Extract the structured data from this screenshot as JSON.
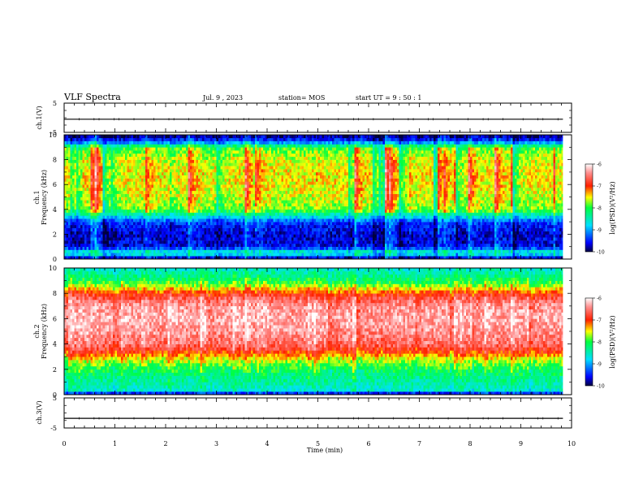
{
  "header": {
    "title": "VLF Spectra",
    "date": "Jul. 9 , 2023",
    "station": "station= MOS",
    "start_ut": "start UT = 9 : 50 : 1"
  },
  "chart_data": [
    {
      "type": "line",
      "panel": "ch1-waveform",
      "ylabel": "ch.1(V)",
      "ylim": [
        -5,
        5
      ],
      "yticks": [
        "5",
        "-5"
      ],
      "x": [
        0,
        9.83
      ],
      "series": [
        {
          "values": [
            -0.5,
            -0.5
          ]
        }
      ],
      "xlim": [
        0,
        10
      ]
    },
    {
      "type": "heatmap",
      "panel": "ch1-spectrogram",
      "ylabel_top": "ch.1",
      "ylabel": "Frequency (kHz)",
      "ylim": [
        0,
        10
      ],
      "yticks": [
        "0",
        "2",
        "4",
        "6",
        "8",
        "10"
      ],
      "xlim": [
        0,
        10
      ],
      "data_end_min": 9.83,
      "colorbar": {
        "label": "log(PSD)(V²/Hz)",
        "range": [
          -10,
          -6
        ],
        "ticks": [
          "-6",
          "-7",
          "-8",
          "-9",
          "-10"
        ]
      },
      "description": "Mean log PSD vs frequency; broadband emissions ~3.5-9.5 kHz with vertical bursts, quiet 0.5-3.5 kHz",
      "freq_profile_khz": [
        0,
        0.5,
        1,
        2,
        3,
        3.5,
        4,
        5,
        6,
        7,
        8,
        9,
        9.5,
        10
      ],
      "log_psd_profile": [
        -10,
        -8.4,
        -9.6,
        -9.7,
        -9.4,
        -8.6,
        -7.8,
        -7.6,
        -7.5,
        -7.5,
        -7.6,
        -7.9,
        -9.4,
        -9.9
      ]
    },
    {
      "type": "heatmap",
      "panel": "ch2-spectrogram",
      "ylabel_top": "ch.2",
      "ylabel": "Frequency (kHz)",
      "ylim": [
        0,
        10
      ],
      "yticks": [
        "0",
        "2",
        "4",
        "6",
        "8",
        "10"
      ],
      "xlim": [
        0,
        10
      ],
      "data_end_min": 9.83,
      "colorbar": {
        "label": "log(PSD)(V²/Hz)",
        "range": [
          -10,
          -6
        ],
        "ticks": [
          "-6",
          "-7",
          "-8",
          "-9",
          "-10"
        ]
      },
      "description": "Mean log PSD vs frequency; strong band ~3-8 kHz",
      "freq_profile_khz": [
        0,
        0.3,
        1,
        2,
        2.5,
        3,
        3.5,
        4,
        5,
        6,
        7,
        7.5,
        8,
        8.5,
        9,
        10
      ],
      "log_psd_profile": [
        -10,
        -8.6,
        -8.4,
        -8.1,
        -7.8,
        -7.4,
        -6.9,
        -6.6,
        -6.4,
        -6.3,
        -6.4,
        -6.6,
        -7.0,
        -7.6,
        -8.1,
        -8.6
      ]
    },
    {
      "type": "line",
      "panel": "ch3-waveform",
      "ylabel": "ch.3(V)",
      "ylim": [
        -5,
        5
      ],
      "yticks": [
        "5",
        "-5"
      ],
      "x": [
        0,
        9.83
      ],
      "series": [
        {
          "values": [
            -1.8,
            -1.8
          ]
        }
      ],
      "xlim": [
        0,
        10
      ],
      "xlabel": "Time (min)",
      "xticks": [
        "0",
        "1",
        "2",
        "3",
        "4",
        "5",
        "6",
        "7",
        "8",
        "9",
        "10"
      ]
    }
  ]
}
